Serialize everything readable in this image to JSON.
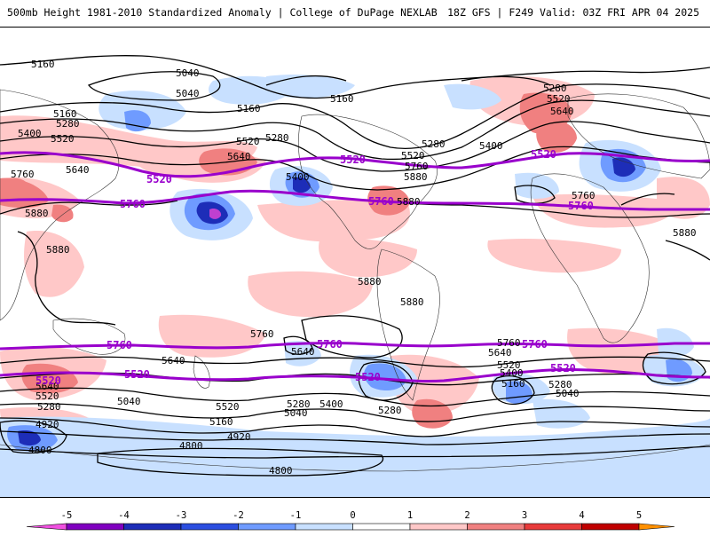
{
  "header": {
    "left_title": "500mb Height 1981-2010 Standardized Anomaly | College of DuPage NEXLAB",
    "right_title": "18Z GFS | F249 Valid: 03Z FRI APR 04 2025"
  },
  "colors": {
    "purple_contour": "#9900cc",
    "anom_pos_1": "#ffc8c8",
    "anom_pos_2": "#f08080",
    "anom_pos_3": "#e83b3b",
    "anom_neg_1": "#c8e0ff",
    "anom_neg_2": "#6f9bff",
    "anom_neg_3": "#2b4ee0",
    "anom_neg_4": "#1d2db8"
  },
  "contour_labels": {
    "north_lines": [
      "5160",
      "5040",
      "5040",
      "5160",
      "5160",
      "5280",
      "5400",
      "5520",
      "5640",
      "5760",
      "5880",
      "5880",
      "5160",
      "5280",
      "5520",
      "5640",
      "5280",
      "5520",
      "5400",
      "5400",
      "5280",
      "5520",
      "5640",
      "5760",
      "5880",
      "5760",
      "5880",
      "5880",
      "5880",
      "5880"
    ],
    "south_lines": [
      "5760",
      "5640",
      "5640",
      "5520",
      "5520",
      "5400",
      "5280",
      "5280",
      "5160",
      "5040",
      "5040",
      "4920",
      "4920",
      "4800",
      "4800",
      "4800",
      "5640",
      "5280",
      "5160",
      "5040",
      "5400",
      "5280",
      "5520",
      "5760",
      "5640"
    ],
    "purple_5520_north": [
      "5520",
      "5520",
      "5520"
    ],
    "purple_5760_north": [
      "5760",
      "5760",
      "5760"
    ],
    "purple_5760_south": [
      "5760",
      "5760",
      "5760"
    ],
    "purple_5520_south": [
      "5520",
      "5520",
      "5520",
      "5520"
    ]
  },
  "colorbar": {
    "ticks": [
      "-5",
      "-4",
      "-3",
      "-2",
      "-1",
      "0",
      "1",
      "2",
      "3",
      "4",
      "5"
    ],
    "colors": [
      "#f050e0",
      "#8000c0",
      "#1d2db8",
      "#2b4ee0",
      "#6f9bff",
      "#c8e0ff",
      "#ffffff",
      "#ffc8c8",
      "#f08080",
      "#e83b3b",
      "#c00000",
      "#ff9000",
      "#ffc000"
    ]
  }
}
